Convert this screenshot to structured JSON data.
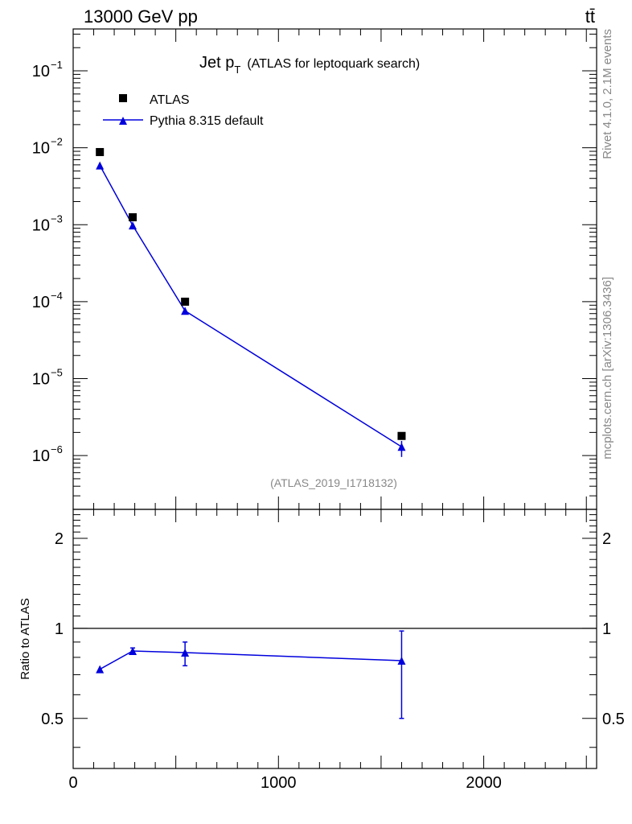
{
  "header": {
    "left_title": "13000 GeV pp",
    "right_title": "tt̄"
  },
  "side_labels": {
    "rivet": "Rivet 4.1.0,  2.1M events",
    "mcplots": "mcplots.cern.ch [arXiv:1306.3436]"
  },
  "chart_data": {
    "type": "scatter",
    "title_main": "Jet p",
    "title_sub": "T",
    "title_rest": "(ATLAS for leptoquark search)",
    "analysis_id": "(ATLAS_2019_I1718132)",
    "colors": {
      "data": "#000000",
      "mc": "#0000dd"
    },
    "top_panel": {
      "yscale": "log",
      "ylim": [
        2e-07,
        0.35
      ],
      "ytick_labels": [
        {
          "value": 0.1,
          "mant": "10",
          "exp": "−1"
        },
        {
          "value": 0.01,
          "mant": "10",
          "exp": "−2"
        },
        {
          "value": 0.001,
          "mant": "10",
          "exp": "−3"
        },
        {
          "value": 0.0001,
          "mant": "10",
          "exp": "−4"
        },
        {
          "value": 1e-05,
          "mant": "10",
          "exp": "−5"
        },
        {
          "value": 1e-06,
          "mant": "10",
          "exp": "−6"
        }
      ],
      "series": [
        {
          "name": "ATLAS",
          "marker": "square",
          "x": [
            130,
            290,
            545,
            1600
          ],
          "y": [
            0.0088,
            0.00125,
            0.0001,
            1.8e-06
          ]
        },
        {
          "name": "Pythia 8.315 default",
          "marker": "triangle",
          "x": [
            130,
            290,
            545,
            1600
          ],
          "y": [
            0.0059,
            0.00098,
            7.6e-05,
            1.3e-06
          ],
          "yerr_low": [
            0,
            0,
            0,
            3.4e-07
          ],
          "yerr_high": [
            0,
            0,
            0,
            2.5e-07
          ]
        }
      ]
    },
    "ratio_panel": {
      "ylabel": "Ratio to ATLAS",
      "yscale": "log",
      "ylim": [
        0.34,
        2.5
      ],
      "ytick_labels": [
        {
          "value": 0.5,
          "label": "0.5"
        },
        {
          "value": 1,
          "label": "1"
        },
        {
          "value": 2,
          "label": "2"
        }
      ],
      "reference": 1,
      "series": [
        {
          "name": "Pythia 8.315 default",
          "x": [
            130,
            290,
            545,
            1600
          ],
          "y": [
            0.73,
            0.84,
            0.83,
            0.78
          ],
          "ylow": [
            0.73,
            0.82,
            0.75,
            0.5
          ],
          "yhigh": [
            0.73,
            0.86,
            0.9,
            0.98
          ]
        }
      ]
    },
    "xlim": [
      0,
      2550
    ],
    "xtick_labels": [
      {
        "value": 0,
        "label": "0"
      },
      {
        "value": 1000,
        "label": "1000"
      },
      {
        "value": 2000,
        "label": "2000"
      }
    ]
  }
}
